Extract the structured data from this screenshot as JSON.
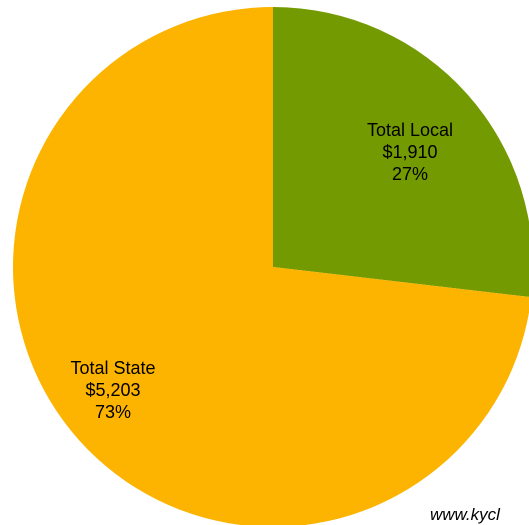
{
  "chart_data": {
    "type": "pie",
    "slices": [
      {
        "name": "Total Local",
        "value_label": "$1,910",
        "value": 1910,
        "percent_label": "27%",
        "percent": 27,
        "color": "#739a00"
      },
      {
        "name": "Total State",
        "value_label": "$5,203",
        "value": 5203,
        "percent_label": "73%",
        "percent": 73,
        "color": "#fcb400"
      }
    ],
    "start_angle": "12 o'clock",
    "direction": "clockwise"
  },
  "watermark": "www.kycl"
}
